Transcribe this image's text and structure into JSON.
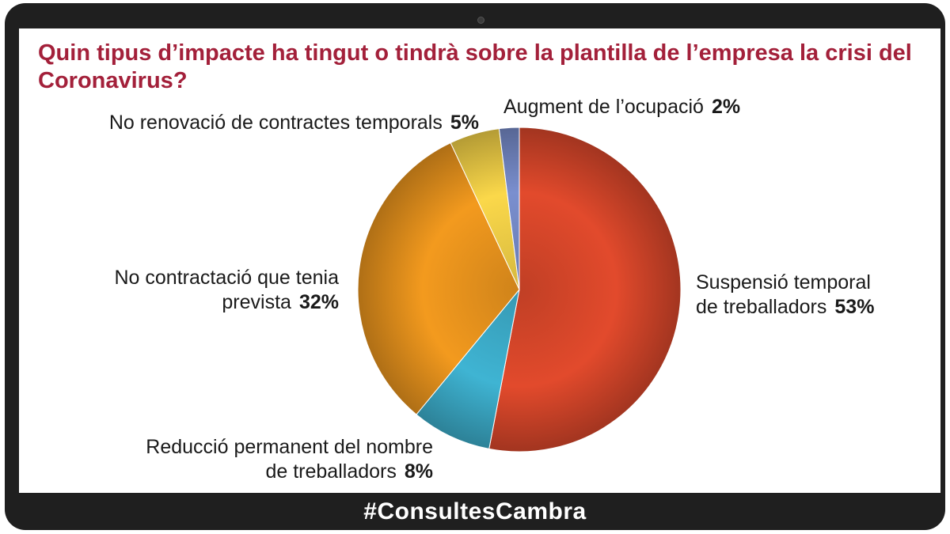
{
  "title": "Quin tipus d’impacte ha tingut o tindrà sobre la plantilla de l’empresa la crisi del Coronavirus?",
  "footer": "#ConsultesCambra",
  "chart_data": {
    "type": "pie",
    "title": "Quin tipus d’impacte ha tingut o tindrà sobre la plantilla de l’empresa la crisi del Coronavirus?",
    "slices": [
      {
        "label_lines": [
          "Suspensió temporal",
          "de treballadors"
        ],
        "value": 53,
        "value_label": "53%",
        "color": "#e24a2c"
      },
      {
        "label_lines": [
          "Reducció permanent del nombre",
          "de treballadors"
        ],
        "value": 8,
        "value_label": "8%",
        "color": "#3fb4d3"
      },
      {
        "label_lines": [
          "No contractació que tenia",
          "prevista"
        ],
        "value": 32,
        "value_label": "32%",
        "color": "#f39a1e"
      },
      {
        "label_lines": [
          "No renovació de contractes temporals"
        ],
        "value": 5,
        "value_label": "5%",
        "color": "#fbd84a"
      },
      {
        "label_lines": [
          "Augment de l’ocupació"
        ],
        "value": 2,
        "value_label": "2%",
        "color": "#7a8fcf"
      }
    ]
  }
}
